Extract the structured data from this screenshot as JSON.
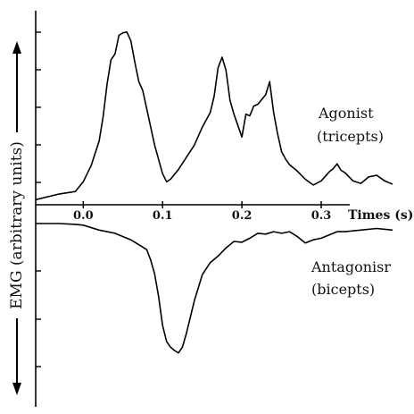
{
  "chart_data": {
    "type": "line",
    "title": "",
    "xlabel": "Times (s)",
    "ylabel": "EMG (arbitrary units)",
    "x_ticks": [
      "0.0",
      "0.1",
      "0.2",
      "0.3"
    ],
    "xlim": [
      -0.06,
      0.39
    ],
    "grid": false,
    "series": [
      {
        "name": "Agonist (tricepts)",
        "label_lines": [
          "Agonist",
          "(tricepts)"
        ],
        "direction": "up",
        "x": [
          -0.06,
          -0.03,
          -0.01,
          0.0,
          0.01,
          0.02,
          0.025,
          0.03,
          0.035,
          0.04,
          0.045,
          0.05,
          0.055,
          0.06,
          0.065,
          0.07,
          0.075,
          0.08,
          0.09,
          0.1,
          0.105,
          0.11,
          0.12,
          0.13,
          0.14,
          0.15,
          0.16,
          0.165,
          0.17,
          0.175,
          0.18,
          0.185,
          0.19,
          0.2,
          0.205,
          0.21,
          0.215,
          0.22,
          0.23,
          0.235,
          0.24,
          0.245,
          0.25,
          0.255,
          0.26,
          0.27,
          0.28,
          0.29,
          0.3,
          0.31,
          0.315,
          0.32,
          0.325,
          0.33,
          0.34,
          0.35,
          0.36,
          0.37,
          0.38,
          0.39
        ],
        "values": [
          0.3,
          1.0,
          1.3,
          2.5,
          4.5,
          7.5,
          10.5,
          14.5,
          17.5,
          18.2,
          20.5,
          20.8,
          20.9,
          19.8,
          17.2,
          14.8,
          13.7,
          11.5,
          7.0,
          3.5,
          2.5,
          2.8,
          4.0,
          5.5,
          7.0,
          9.2,
          11.0,
          13.0,
          16.5,
          17.8,
          16.2,
          12.5,
          10.8,
          8.0,
          10.8,
          10.6,
          11.8,
          12.0,
          13.2,
          14.8,
          11.0,
          8.4,
          6.2,
          5.3,
          4.6,
          3.8,
          2.8,
          2.1,
          2.6,
          3.7,
          4.1,
          4.7,
          3.9,
          3.6,
          2.6,
          2.3,
          3.1,
          3.3,
          2.6,
          2.2
        ]
      },
      {
        "name": "Antagonisr (bicepts)",
        "label_lines": [
          "Antagonisr",
          "(bicepts)"
        ],
        "direction": "down",
        "x": [
          -0.06,
          -0.03,
          -0.01,
          0.0,
          0.02,
          0.04,
          0.05,
          0.06,
          0.07,
          0.08,
          0.085,
          0.09,
          0.095,
          0.1,
          0.105,
          0.11,
          0.115,
          0.12,
          0.125,
          0.13,
          0.14,
          0.15,
          0.16,
          0.17,
          0.18,
          0.19,
          0.2,
          0.21,
          0.22,
          0.23,
          0.24,
          0.25,
          0.26,
          0.27,
          0.28,
          0.29,
          0.3,
          0.31,
          0.32,
          0.33,
          0.35,
          0.37,
          0.39
        ],
        "values": [
          0.0,
          0.0,
          0.1,
          0.2,
          0.8,
          1.2,
          1.6,
          2.0,
          2.6,
          3.2,
          4.5,
          6.2,
          9.0,
          12.5,
          14.5,
          15.2,
          15.6,
          15.9,
          15.2,
          13.5,
          9.5,
          6.3,
          4.8,
          4.0,
          3.0,
          2.2,
          2.3,
          1.8,
          1.2,
          1.3,
          1.0,
          1.2,
          1.0,
          1.6,
          2.4,
          2.0,
          1.8,
          1.4,
          1.0,
          1.0,
          0.8,
          0.6,
          0.8
        ]
      }
    ]
  }
}
